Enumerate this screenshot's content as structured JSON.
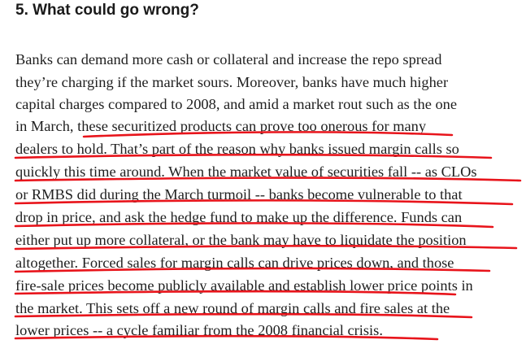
{
  "heading": "5. What could go wrong?",
  "paragraph_lines": [
    "Banks can demand more cash or collateral and increase the repo spread",
    "they’re charging if the market sours. Moreover, banks have much higher",
    "capital charges compared to 2008, and amid a market rout such as the one",
    "in March, these securitized products can prove too onerous for many",
    "dealers to hold. That’s part of the reason why banks issued margin calls so",
    "quickly this time around. When the market value of securities fall -- as CLOs",
    "or RMBS did during the March turmoil -- banks become vulnerable to that",
    "drop in price, and ask the hedge fund to make up the difference. Funds can",
    "either put up more collateral, or the bank may have to liquidate the position",
    "altogether. Forced sales for margin calls can drive prices down, and those",
    "fire-sale prices become publicly available and establish lower price points in",
    "the market. This sets off a new round of margin calls and fire sales at the",
    "lower prices -- a cycle familiar from the 2008 financial crisis."
  ],
  "annotation_color": "#e8141b",
  "text_color": "#1f1f1f"
}
